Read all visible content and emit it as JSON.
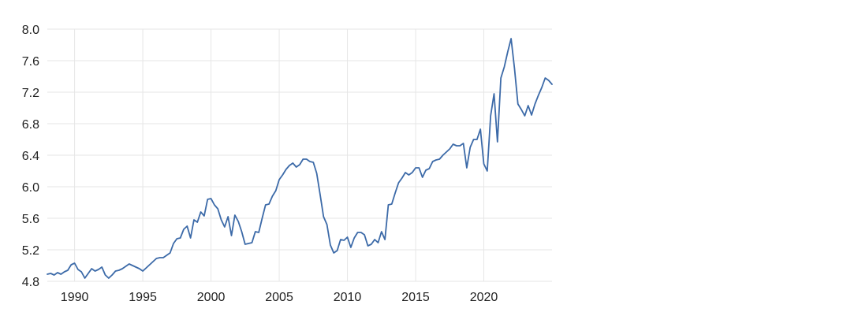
{
  "chart_data": {
    "type": "line",
    "title": "",
    "xlabel": "",
    "ylabel": "",
    "xlim": [
      1988.0,
      2025.0
    ],
    "ylim": [
      4.8,
      8.0
    ],
    "x_ticks": [
      1990,
      1995,
      2000,
      2005,
      2010,
      2015,
      2020
    ],
    "y_ticks": [
      4.8,
      5.2,
      5.6,
      6.0,
      6.4,
      6.8,
      7.2,
      7.6,
      8.0
    ],
    "x_tick_labels": [
      "1990",
      "1995",
      "2000",
      "2005",
      "2010",
      "2015",
      "2020"
    ],
    "y_tick_labels": [
      "4.8",
      "5.2",
      "5.6",
      "6.0",
      "6.4",
      "6.8",
      "7.2",
      "7.6",
      "8.0"
    ],
    "grid": true,
    "line_color": "#3c6aa8",
    "grid_color": "#e6e6e6",
    "series": [
      {
        "values_x": [
          1988.0,
          1988.25,
          1988.5,
          1988.75,
          1989.0,
          1989.25,
          1989.5,
          1989.75,
          1990.0,
          1990.25,
          1990.5,
          1990.75,
          1991.0,
          1991.25,
          1991.5,
          1991.75,
          1992.0,
          1992.25,
          1992.5,
          1992.75,
          1993.0,
          1993.25,
          1993.5,
          1993.75,
          1994.0,
          1994.25,
          1994.5,
          1994.75,
          1995.0,
          1995.25,
          1995.5,
          1995.75,
          1996.0,
          1996.25,
          1996.5,
          1996.75,
          1997.0,
          1997.25,
          1997.5,
          1997.75,
          1998.0,
          1998.25,
          1998.5,
          1998.75,
          1999.0,
          1999.25,
          1999.5,
          1999.75,
          2000.0,
          2000.25,
          2000.5,
          2000.75,
          2001.0,
          2001.25,
          2001.5,
          2001.75,
          2002.0,
          2002.25,
          2002.5,
          2002.75,
          2003.0,
          2003.25,
          2003.5,
          2003.75,
          2004.0,
          2004.25,
          2004.5,
          2004.75,
          2005.0,
          2005.25,
          2005.5,
          2005.75,
          2006.0,
          2006.25,
          2006.5,
          2006.75,
          2007.0,
          2007.25,
          2007.5,
          2007.75,
          2008.0,
          2008.25,
          2008.5,
          2008.75,
          2009.0,
          2009.25,
          2009.5,
          2009.75,
          2010.0,
          2010.25,
          2010.5,
          2010.75,
          2011.0,
          2011.25,
          2011.5,
          2011.75,
          2012.0,
          2012.25,
          2012.5,
          2012.75,
          2013.0,
          2013.25,
          2013.5,
          2013.75,
          2014.0,
          2014.25,
          2014.5,
          2014.75,
          2015.0,
          2015.25,
          2015.5,
          2015.75,
          2016.0,
          2016.25,
          2016.5,
          2016.75,
          2017.0,
          2017.25,
          2017.5,
          2017.75,
          2018.0,
          2018.25,
          2018.5,
          2018.75,
          2019.0,
          2019.25,
          2019.5,
          2019.75,
          2020.0,
          2020.25,
          2020.5,
          2020.75,
          2021.0,
          2021.25,
          2021.5,
          2021.75,
          2022.0,
          2022.25,
          2022.5,
          2022.75,
          2023.0,
          2023.25,
          2023.5,
          2023.75,
          2024.0,
          2024.25,
          2024.5,
          2024.75,
          2025.0
        ],
        "values_y": [
          4.89,
          4.9,
          4.88,
          4.91,
          4.89,
          4.92,
          4.94,
          5.01,
          5.03,
          4.95,
          4.92,
          4.84,
          4.9,
          4.96,
          4.93,
          4.95,
          4.98,
          4.88,
          4.84,
          4.88,
          4.93,
          4.94,
          4.96,
          4.99,
          5.02,
          5.0,
          4.98,
          4.96,
          4.93,
          4.97,
          5.01,
          5.05,
          5.09,
          5.1,
          5.1,
          5.13,
          5.16,
          5.28,
          5.34,
          5.35,
          5.46,
          5.5,
          5.35,
          5.58,
          5.55,
          5.68,
          5.63,
          5.84,
          5.85,
          5.77,
          5.72,
          5.58,
          5.49,
          5.62,
          5.38,
          5.64,
          5.56,
          5.43,
          5.27,
          5.28,
          5.29,
          5.43,
          5.42,
          5.6,
          5.77,
          5.78,
          5.88,
          5.95,
          6.09,
          6.15,
          6.22,
          6.27,
          6.3,
          6.25,
          6.28,
          6.35,
          6.35,
          6.32,
          6.31,
          6.17,
          5.9,
          5.62,
          5.52,
          5.26,
          5.16,
          5.19,
          5.33,
          5.32,
          5.36,
          5.23,
          5.35,
          5.42,
          5.42,
          5.39,
          5.25,
          5.27,
          5.33,
          5.29,
          5.43,
          5.33,
          5.77,
          5.78,
          5.92,
          6.05,
          6.11,
          6.18,
          6.15,
          6.18,
          6.24,
          6.24,
          6.12,
          6.21,
          6.23,
          6.32,
          6.34,
          6.35,
          6.4,
          6.44,
          6.48,
          6.54,
          6.52,
          6.52,
          6.55,
          6.24,
          6.5,
          6.6,
          6.6,
          6.73,
          6.29,
          6.2,
          6.9,
          7.18,
          6.57,
          7.38,
          7.52,
          7.71,
          7.88,
          7.5,
          7.05,
          6.98,
          6.9,
          7.03,
          6.91,
          7.05,
          7.16,
          7.26,
          7.38,
          7.35,
          7.3
        ]
      }
    ]
  }
}
